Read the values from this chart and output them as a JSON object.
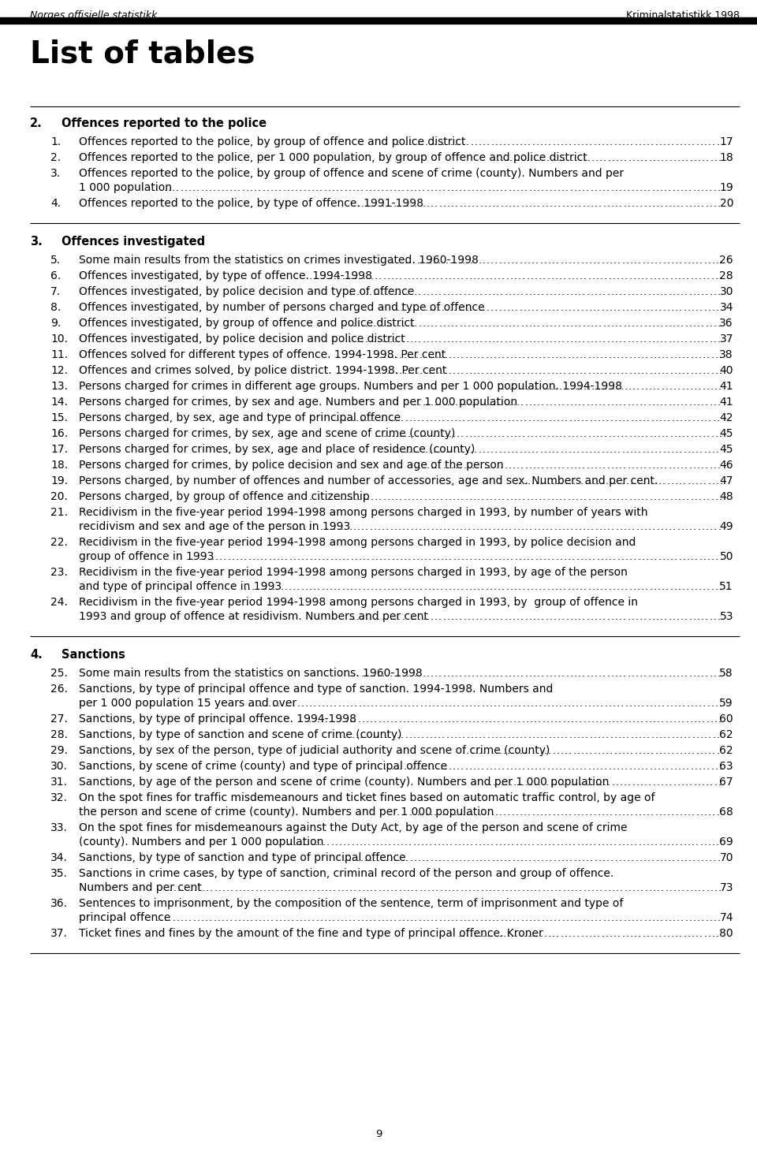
{
  "header_left": "Norges offisielle statistikk",
  "header_right": "Kriminalstatistikk 1998",
  "page_title": "List of tables",
  "footer_page": "9",
  "sections": [
    {
      "num": "2.",
      "title": "Offences reported to the police",
      "entries": [
        {
          "num": "1.",
          "line1": "Offences reported to the police, by group of offence and police district",
          "line2": "",
          "page": "17"
        },
        {
          "num": "2.",
          "line1": "Offences reported to the police, per 1 000 population, by group of offence and police district",
          "line2": "",
          "page": "18"
        },
        {
          "num": "3.",
          "line1": "Offences reported to the police, by group of offence and scene of crime (county). Numbers and per",
          "line2": "1 000 population",
          "page": "19"
        },
        {
          "num": "4.",
          "line1": "Offences reported to the police, by type of offence. 1991-1998",
          "line2": "",
          "page": "20"
        }
      ]
    },
    {
      "num": "3.",
      "title": "Offences investigated",
      "entries": [
        {
          "num": "5.",
          "line1": "Some main results from the statistics on crimes investigated. 1960-1998",
          "line2": "",
          "page": "26"
        },
        {
          "num": "6.",
          "line1": "Offences investigated, by type of offence. 1994-1998",
          "line2": "",
          "page": "28"
        },
        {
          "num": "7.",
          "line1": "Offences investigated, by police decision and type of offence",
          "line2": "",
          "page": "30"
        },
        {
          "num": "8.",
          "line1": "Offences investigated, by number of persons charged and type of offence",
          "line2": "",
          "page": "34"
        },
        {
          "num": "9.",
          "line1": "Offences investigated, by group of offence and police district",
          "line2": "",
          "page": "36"
        },
        {
          "num": "10.",
          "line1": "Offences investigated, by police decision and police district",
          "line2": "",
          "page": "37"
        },
        {
          "num": "11.",
          "line1": "Offences solved for different types of offence. 1994-1998. Per cent",
          "line2": "",
          "page": "38"
        },
        {
          "num": "12.",
          "line1": "Offences and crimes solved, by police district. 1994-1998. Per cent",
          "line2": "",
          "page": "40"
        },
        {
          "num": "13.",
          "line1": "Persons charged for crimes in different age groups. Numbers and per 1 000 population. 1994-1998",
          "line2": "",
          "page": "41"
        },
        {
          "num": "14.",
          "line1": "Persons charged for crimes, by sex and age. Numbers and per 1 000 population",
          "line2": "",
          "page": "41"
        },
        {
          "num": "15.",
          "line1": "Persons charged, by sex, age and type of principal offence",
          "line2": "",
          "page": "42"
        },
        {
          "num": "16.",
          "line1": "Persons charged for crimes, by sex, age and scene of crime (county)",
          "line2": "",
          "page": "45"
        },
        {
          "num": "17.",
          "line1": "Persons charged for crimes, by sex, age and place of residence (county)",
          "line2": "",
          "page": "45"
        },
        {
          "num": "18.",
          "line1": "Persons charged for crimes, by police decision and sex and age of the person",
          "line2": "",
          "page": "46"
        },
        {
          "num": "19.",
          "line1": "Persons charged, by number of offences and number of accessories, age and sex. Numbers and per cent.",
          "line2": "",
          "page": "47"
        },
        {
          "num": "20.",
          "line1": "Persons charged, by group of offence and citizenship",
          "line2": "",
          "page": "48"
        },
        {
          "num": "21.",
          "line1": "Recidivism in the five-year period 1994-1998 among persons charged in 1993, by number of years with",
          "line2": "recidivism and sex and age of the person in 1993",
          "page": "49"
        },
        {
          "num": "22.",
          "line1": "Recidivism in the five-year period 1994-1998 among persons charged in 1993, by police decision and",
          "line2": "group of offence in 1993",
          "page": "50"
        },
        {
          "num": "23.",
          "line1": "Recidivism in the five-year period 1994-1998 among persons charged in 1993, by age of the person",
          "line2": "and type of principal offence in 1993",
          "page": "51"
        },
        {
          "num": "24.",
          "line1": "Recidivism in the five-year period 1994-1998 among persons charged in 1993, by  group of offence in",
          "line2": "1993 and group of offence at residivism. Numbers and per cent",
          "page": "53"
        }
      ]
    },
    {
      "num": "4.",
      "title": "Sanctions",
      "entries": [
        {
          "num": "25.",
          "line1": "Some main results from the statistics on sanctions. 1960-1998",
          "line2": "",
          "page": "58"
        },
        {
          "num": "26.",
          "line1": "Sanctions, by type of principal offence and type of sanction. 1994-1998. Numbers and",
          "line2": "per 1 000 population 15 years and over",
          "page": "59"
        },
        {
          "num": "27.",
          "line1": "Sanctions, by type of principal offence. 1994-1998",
          "line2": "",
          "page": "60"
        },
        {
          "num": "28.",
          "line1": "Sanctions, by type of sanction and scene of crime (county)",
          "line2": "",
          "page": "62"
        },
        {
          "num": "29.",
          "line1": "Sanctions, by sex of the person, type of judicial authority and scene of crime (county)",
          "line2": "",
          "page": "62"
        },
        {
          "num": "30.",
          "line1": "Sanctions, by scene of crime (county) and type of principal offence",
          "line2": "",
          "page": "63"
        },
        {
          "num": "31.",
          "line1": "Sanctions, by age of the person and scene of crime (county). Numbers and per 1 000 population",
          "line2": "",
          "page": "67"
        },
        {
          "num": "32.",
          "line1": "On the spot fines for traffic misdemeanours and ticket fines based on automatic traffic control, by age of",
          "line2": "the person and scene of crime (county). Numbers and per 1 000 population",
          "page": "68"
        },
        {
          "num": "33.",
          "line1": "On the spot fines for misdemeanours against the Duty Act, by age of the person and scene of crime",
          "line2": "(county). Numbers and per 1 000 population",
          "page": "69"
        },
        {
          "num": "34.",
          "line1": "Sanctions, by type of sanction and type of principal offence",
          "line2": "",
          "page": "70"
        },
        {
          "num": "35.",
          "line1": "Sanctions in crime cases, by type of sanction, criminal record of the person and group of offence.",
          "line2": "Numbers and per cent",
          "page": "73"
        },
        {
          "num": "36.",
          "line1": "Sentences to imprisonment, by the composition of the sentence, term of imprisonment and type of",
          "line2": "principal offence",
          "page": "74"
        },
        {
          "num": "37.",
          "line1": "Ticket fines and fines by the amount of the fine and type of principal offence. Kroner",
          "line2": "",
          "page": "80"
        }
      ]
    }
  ]
}
